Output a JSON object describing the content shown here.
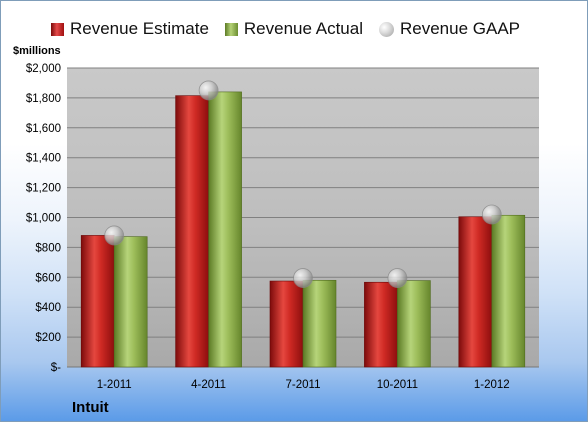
{
  "chart_data": {
    "type": "bar",
    "title": "",
    "company": "Intuit",
    "ylabel": "$millions",
    "xlabel": "",
    "categories": [
      "1-2011",
      "4-2011",
      "7-2011",
      "10-2011",
      "1-2012"
    ],
    "series": [
      {
        "name": "Revenue Estimate",
        "kind": "bar",
        "color": "#c0191b",
        "values": [
          880,
          1815,
          575,
          567,
          1005
        ]
      },
      {
        "name": "Revenue Actual",
        "kind": "bar",
        "color": "#8fb04a",
        "values": [
          872,
          1840,
          580,
          578,
          1015
        ]
      },
      {
        "name": "Revenue GAAP",
        "kind": "marker",
        "color": "#bdbdbd",
        "values": [
          880,
          1850,
          595,
          595,
          1020
        ]
      }
    ],
    "ylim": [
      0,
      2000
    ],
    "yticks": [
      0,
      200,
      400,
      600,
      800,
      1000,
      1200,
      1400,
      1600,
      1800,
      2000
    ],
    "ytick_labels": [
      "$-",
      "$200",
      "$400",
      "$600",
      "$800",
      "$1,000",
      "$1,200",
      "$1,400",
      "$1,600",
      "$1,800",
      "$2,000"
    ],
    "grid": true,
    "legend_position": "top"
  }
}
